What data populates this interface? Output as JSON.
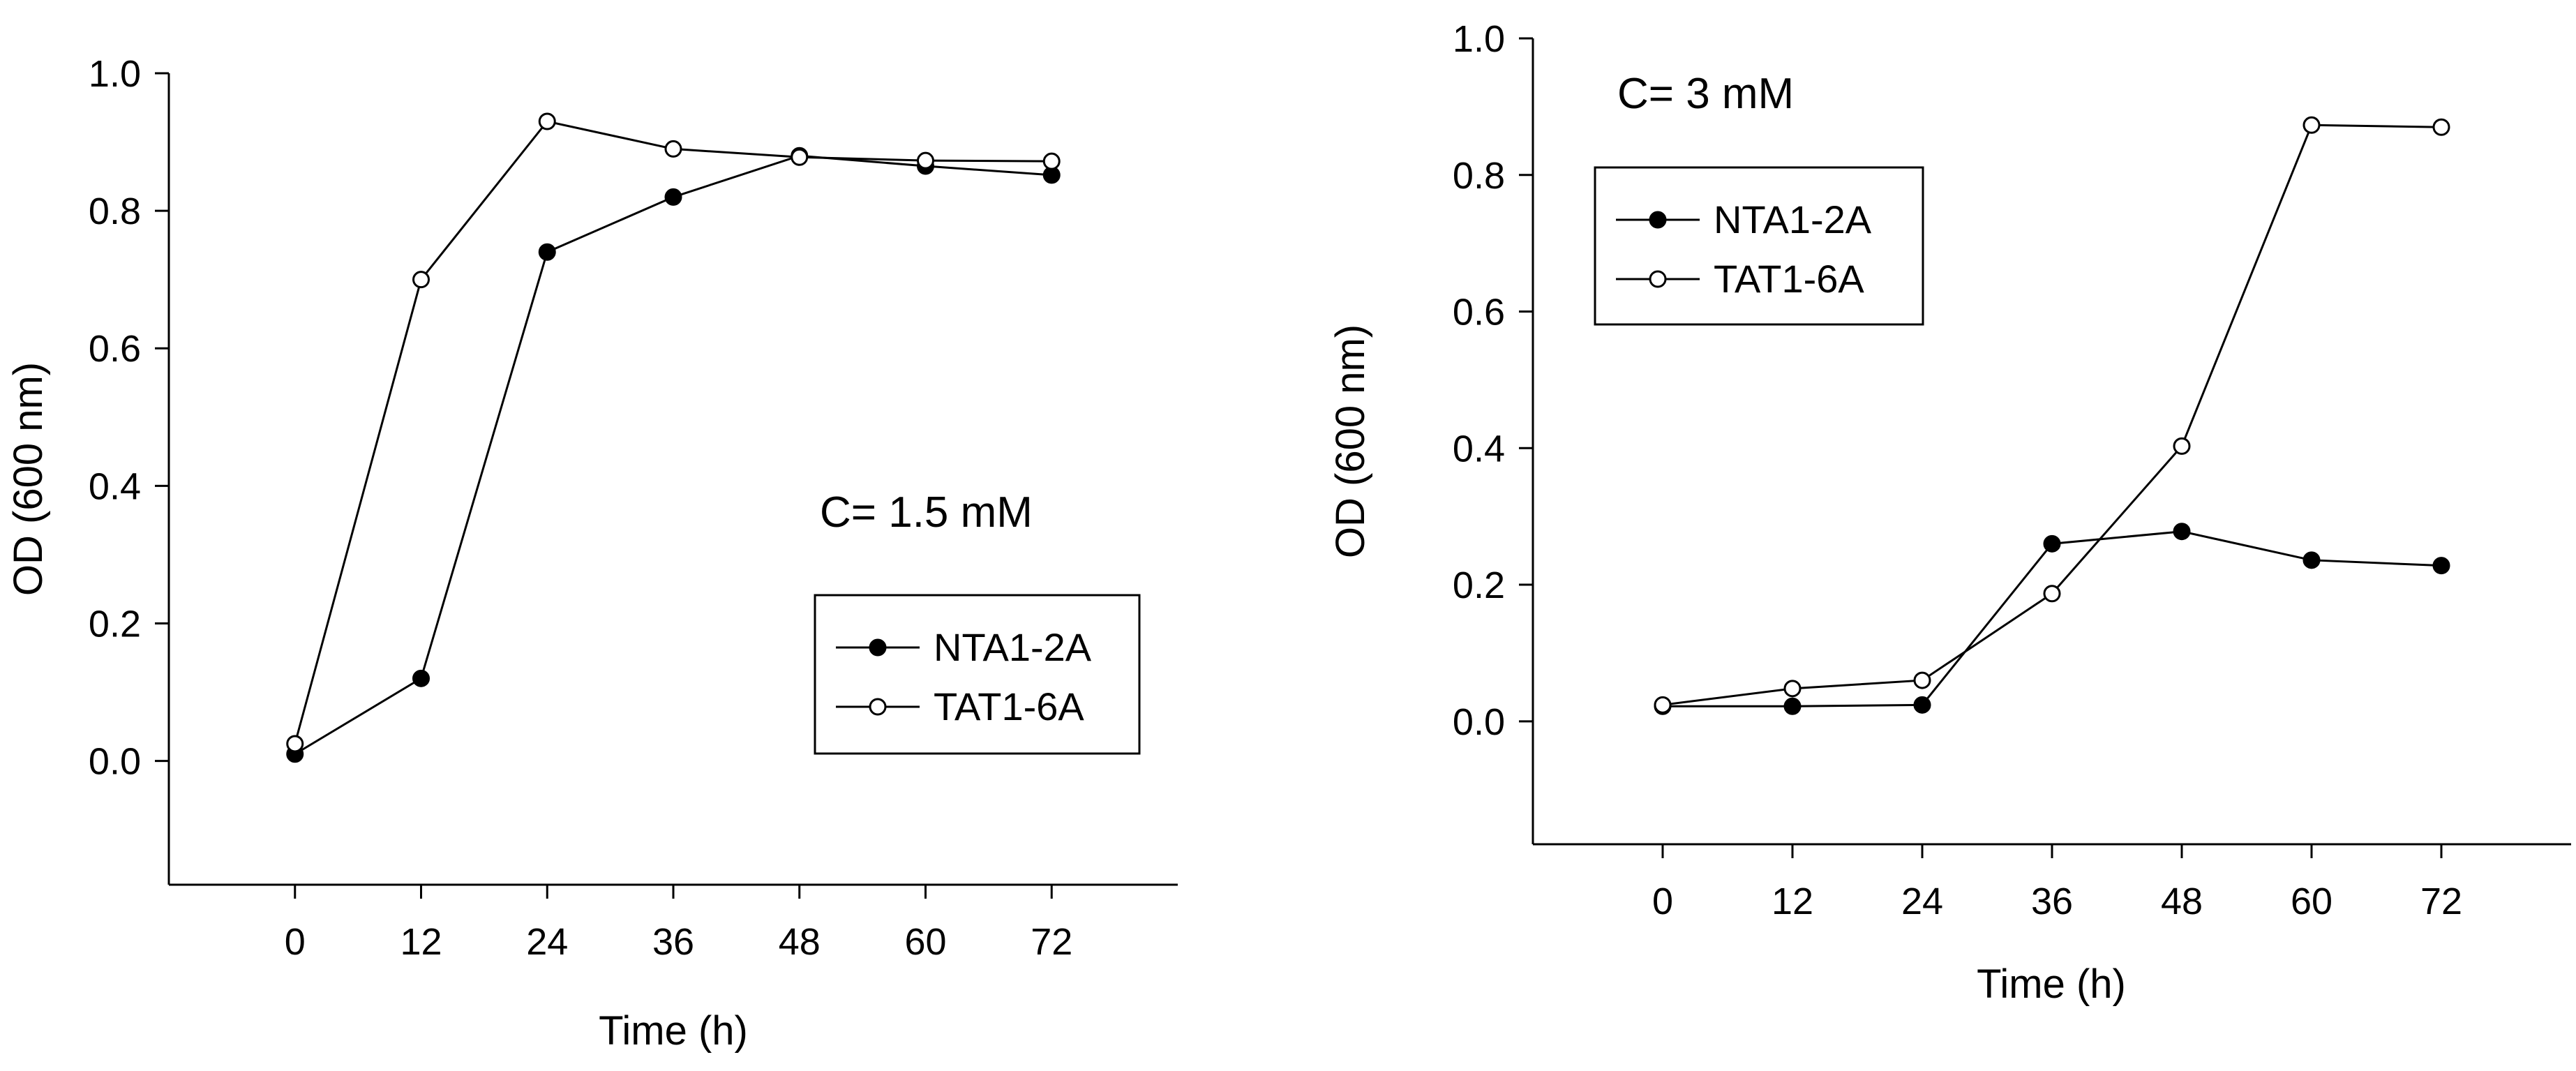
{
  "chart_data": [
    {
      "type": "line",
      "annotation": "C= 1.5 mM",
      "xlabel": "Time (h)",
      "ylabel": "OD (600 nm)",
      "x": [
        0,
        12,
        24,
        36,
        48,
        60,
        72
      ],
      "xlim": [
        -12,
        84
      ],
      "ylim": [
        -0.18,
        1.0
      ],
      "xticks": [
        "0",
        "12",
        "24",
        "36",
        "48",
        "60",
        "72"
      ],
      "yticks": [
        "0.0",
        "0.2",
        "0.4",
        "0.6",
        "0.8",
        "1.0"
      ],
      "grid": false,
      "legend_position": "right",
      "series": [
        {
          "name": "NTA1-2A",
          "marker": "filled-circle",
          "values": [
            0.01,
            0.12,
            0.74,
            0.82,
            0.88,
            0.865,
            0.852
          ]
        },
        {
          "name": "TAT1-6A",
          "marker": "open-circle",
          "values": [
            0.025,
            0.7,
            0.93,
            0.89,
            0.878,
            0.873,
            0.872
          ]
        }
      ]
    },
    {
      "type": "line",
      "annotation": "C= 3 mM",
      "xlabel": "Time (h)",
      "ylabel": "OD (600 nm)",
      "x": [
        0,
        12,
        24,
        36,
        48,
        60,
        72
      ],
      "xlim": [
        -12,
        84
      ],
      "ylim": [
        -0.18,
        1.0
      ],
      "xticks": [
        "0",
        "12",
        "24",
        "36",
        "48",
        "60",
        "72"
      ],
      "yticks": [
        "0.0",
        "0.2",
        "0.4",
        "0.6",
        "0.8",
        "1.0"
      ],
      "grid": false,
      "legend_position": "top-left",
      "series": [
        {
          "name": "NTA1-2A",
          "marker": "filled-circle",
          "values": [
            0.022,
            0.022,
            0.024,
            0.26,
            0.278,
            0.236,
            0.228
          ]
        },
        {
          "name": "TAT1-6A",
          "marker": "open-circle",
          "values": [
            0.024,
            0.048,
            0.06,
            0.187,
            0.403,
            0.873,
            0.87
          ]
        }
      ]
    }
  ]
}
